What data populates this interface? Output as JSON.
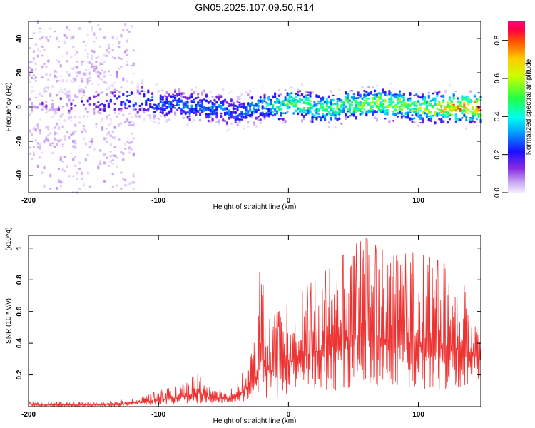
{
  "figure_title": "GN05.2025.107.09.50.R14",
  "chart_data": [
    {
      "type": "heatmap",
      "xlabel": "Height of straight line (km)",
      "ylabel": "Frequency (Hz)",
      "xlim": [
        -200,
        148
      ],
      "ylim": [
        -50,
        50
      ],
      "xticks": [
        -200,
        -100,
        0,
        100
      ],
      "yticks": [
        -40,
        -20,
        0,
        20,
        40
      ],
      "colorbar": {
        "label": "Normalized spectral amplitude",
        "range": [
          0,
          0.9
        ],
        "ticks": [
          0.0,
          0.2,
          0.4,
          0.6,
          0.8
        ],
        "colormap": "rainbow (lavender-purple-blue-cyan-green-yellow-orange-red)"
      },
      "description_points": {
        "x": [
          -200,
          -150,
          -120,
          -100,
          -80,
          -60,
          -40,
          -20,
          0,
          20,
          40,
          60,
          80,
          100,
          120,
          148
        ],
        "center_frequency": [
          2,
          2,
          4,
          2,
          1,
          -1,
          -3,
          0,
          2,
          0,
          0,
          2,
          2,
          0,
          0,
          0
        ],
        "peak_amplitude": [
          0.12,
          0.18,
          0.3,
          0.3,
          0.32,
          0.35,
          0.3,
          0.4,
          0.55,
          0.5,
          0.55,
          0.6,
          0.65,
          0.6,
          0.75,
          0.85
        ]
      }
    },
    {
      "type": "line",
      "xlabel": "Height of straight line (km)",
      "ylabel": "SNR (10 * v/v)",
      "y_multiplier": "(x10^4)",
      "xlim": [
        -200,
        148
      ],
      "ylim": [
        0,
        1.08
      ],
      "xticks": [
        -200,
        -100,
        0,
        100
      ],
      "yticks": [
        0.2,
        0.4,
        0.6,
        0.8,
        1
      ],
      "series": [
        {
          "color": "#ee3333",
          "envelope_x": [
            -200,
            -160,
            -130,
            -115,
            -100,
            -80,
            -70,
            -60,
            -45,
            -35,
            -25,
            -22,
            -15,
            0,
            20,
            35,
            50,
            60,
            80,
            100,
            120,
            148
          ],
          "envelope_max": [
            0.03,
            0.03,
            0.04,
            0.06,
            0.1,
            0.14,
            0.22,
            0.12,
            0.1,
            0.22,
            0.45,
            0.9,
            0.55,
            0.65,
            0.8,
            0.9,
            1.02,
            1.06,
            0.95,
            0.98,
            0.9,
            0.65
          ],
          "envelope_min": [
            0.0,
            0.0,
            0.0,
            0.01,
            0.01,
            0.02,
            0.02,
            0.02,
            0.02,
            0.03,
            0.04,
            0.05,
            0.05,
            0.08,
            0.1,
            0.1,
            0.12,
            0.12,
            0.1,
            0.1,
            0.1,
            0.15
          ]
        }
      ]
    }
  ]
}
